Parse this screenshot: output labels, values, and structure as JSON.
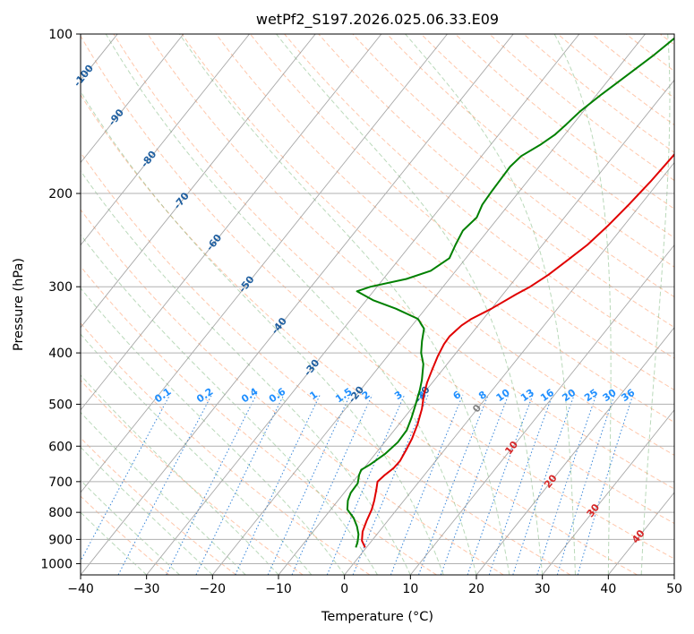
{
  "chart_data": {
    "type": "line",
    "subtype": "skew-t log-p",
    "title": "wetPf2_S197.2026.025.06.33.E09",
    "xlabel": "Temperature (°C)",
    "ylabel": "Pressure (hPa)",
    "xlim": [
      -40,
      50
    ],
    "ylim": [
      1050,
      100
    ],
    "x_ticks": [
      -40,
      -30,
      -20,
      -10,
      0,
      10,
      20,
      30,
      40,
      50
    ],
    "y_ticks": [
      100,
      200,
      300,
      400,
      500,
      600,
      700,
      800,
      900,
      1000
    ],
    "grid": true,
    "colors": {
      "temperature": "#e00000",
      "dewpoint": "#008000",
      "dry_adiabat": "#ff9966",
      "moist_adiabat": "#66aa66",
      "mixing_ratio": "#1f77d4",
      "isotherm_label_cold": "#1f5fa0",
      "isotherm_label_warm": "#d62728",
      "isotherm_label_zero": "#808080",
      "mixing_label": "#1f8fff"
    },
    "series": [
      {
        "name": "Temperature",
        "points": [
          {
            "p": 932,
            "t": -0.2
          },
          {
            "p": 905,
            "t": -1.5
          },
          {
            "p": 870,
            "t": -2.5
          },
          {
            "p": 830,
            "t": -3.2
          },
          {
            "p": 790,
            "t": -3.8
          },
          {
            "p": 760,
            "t": -4.5
          },
          {
            "p": 725,
            "t": -5.5
          },
          {
            "p": 700,
            "t": -6.3
          },
          {
            "p": 680,
            "t": -6.0
          },
          {
            "p": 660,
            "t": -5.5
          },
          {
            "p": 640,
            "t": -5.4
          },
          {
            "p": 610,
            "t": -5.8
          },
          {
            "p": 580,
            "t": -6.3
          },
          {
            "p": 545,
            "t": -7.2
          },
          {
            "p": 510,
            "t": -8.4
          },
          {
            "p": 480,
            "t": -9.8
          },
          {
            "p": 455,
            "t": -10.8
          },
          {
            "p": 430,
            "t": -11.6
          },
          {
            "p": 405,
            "t": -12.4
          },
          {
            "p": 385,
            "t": -12.9
          },
          {
            "p": 372,
            "t": -13.0
          },
          {
            "p": 355,
            "t": -12.5
          },
          {
            "p": 345,
            "t": -11.8
          },
          {
            "p": 330,
            "t": -10.0
          },
          {
            "p": 310,
            "t": -8.0
          },
          {
            "p": 300,
            "t": -6.8
          },
          {
            "p": 285,
            "t": -5.5
          },
          {
            "p": 265,
            "t": -4.2
          },
          {
            "p": 250,
            "t": -3.2
          },
          {
            "p": 230,
            "t": -2.4
          },
          {
            "p": 210,
            "t": -1.8
          },
          {
            "p": 190,
            "t": -1.3
          },
          {
            "p": 170,
            "t": -1.0
          },
          {
            "p": 150,
            "t": -0.9
          },
          {
            "p": 130,
            "t": -1.0
          },
          {
            "p": 115,
            "t": -1.1
          },
          {
            "p": 100,
            "t": -1.6
          }
        ]
      },
      {
        "name": "Dewpoint",
        "points": [
          {
            "p": 932,
            "t": -1.6
          },
          {
            "p": 910,
            "t": -2.0
          },
          {
            "p": 880,
            "t": -2.8
          },
          {
            "p": 850,
            "t": -4.0
          },
          {
            "p": 820,
            "t": -5.5
          },
          {
            "p": 790,
            "t": -7.5
          },
          {
            "p": 760,
            "t": -8.5
          },
          {
            "p": 735,
            "t": -9.0
          },
          {
            "p": 705,
            "t": -9.1
          },
          {
            "p": 680,
            "t": -9.9
          },
          {
            "p": 665,
            "t": -10.2
          },
          {
            "p": 650,
            "t": -9.5
          },
          {
            "p": 620,
            "t": -8.5
          },
          {
            "p": 590,
            "t": -8.0
          },
          {
            "p": 560,
            "t": -8.1
          },
          {
            "p": 530,
            "t": -8.9
          },
          {
            "p": 500,
            "t": -9.9
          },
          {
            "p": 470,
            "t": -11.0
          },
          {
            "p": 450,
            "t": -11.9
          },
          {
            "p": 420,
            "t": -13.6
          },
          {
            "p": 400,
            "t": -15.3
          },
          {
            "p": 380,
            "t": -16.6
          },
          {
            "p": 360,
            "t": -17.8
          },
          {
            "p": 345,
            "t": -19.9
          },
          {
            "p": 330,
            "t": -24.5
          },
          {
            "p": 318,
            "t": -29.0
          },
          {
            "p": 306,
            "t": -32.5
          },
          {
            "p": 300,
            "t": -31.0
          },
          {
            "p": 290,
            "t": -26.5
          },
          {
            "p": 280,
            "t": -23.8
          },
          {
            "p": 265,
            "t": -22.5
          },
          {
            "p": 250,
            "t": -23.2
          },
          {
            "p": 235,
            "t": -23.8
          },
          {
            "p": 222,
            "t": -23.3
          },
          {
            "p": 210,
            "t": -24.0
          },
          {
            "p": 198,
            "t": -24.2
          },
          {
            "p": 188,
            "t": -24.3
          },
          {
            "p": 178,
            "t": -24.4
          },
          {
            "p": 170,
            "t": -24.0
          },
          {
            "p": 162,
            "t": -22.5
          },
          {
            "p": 155,
            "t": -21.5
          },
          {
            "p": 148,
            "t": -21.0
          },
          {
            "p": 140,
            "t": -20.5
          },
          {
            "p": 130,
            "t": -19.3
          },
          {
            "p": 120,
            "t": -17.8
          },
          {
            "p": 110,
            "t": -16.2
          },
          {
            "p": 100,
            "t": -14.8
          }
        ]
      }
    ],
    "isotherm_labels": [
      -100,
      -90,
      -80,
      -70,
      -60,
      -50,
      -40,
      -30,
      -20,
      -10,
      0,
      10,
      20,
      30,
      40
    ],
    "mixing_ratio_labels": [
      "0.1",
      "0.2",
      "0.4",
      "0.6",
      "1",
      "1.5",
      "2",
      "3",
      "4",
      "6",
      "8",
      "10",
      "13",
      "16",
      "20",
      "25",
      "30",
      "36"
    ],
    "mixing_ratio_label_pressure": 500
  }
}
